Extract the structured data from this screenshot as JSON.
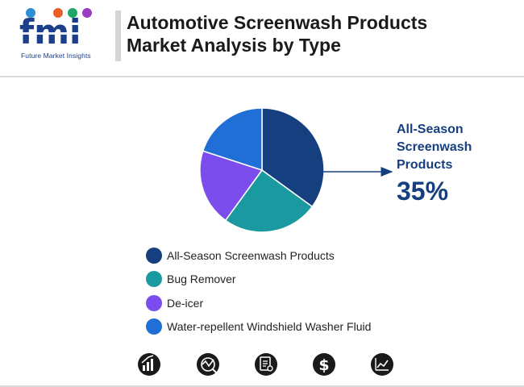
{
  "header": {
    "logo_text": "fmi",
    "logo_tagline": "Future Market Insights",
    "title_line1": "Automotive Screenwash Products",
    "title_line2": "Market Analysis by Type"
  },
  "colors": {
    "all_season": "#163f7f",
    "bug_remover": "#1a9aa0",
    "de_icer": "#7b4ded",
    "water_repellent": "#1f6fd6",
    "callout": "#163f7f"
  },
  "chart_data": {
    "type": "pie",
    "title": "",
    "slices": [
      {
        "label": "All-Season Screenwash Products",
        "value": 35,
        "color": "#163f7f"
      },
      {
        "label": "Bug Remover",
        "value": 25,
        "color": "#1a9aa0"
      },
      {
        "label": "De-icer",
        "value": 20,
        "color": "#7b4ded"
      },
      {
        "label": "Water-repellent Windshield Washer Fluid",
        "value": 20,
        "color": "#1f6fd6"
      }
    ],
    "highlight": {
      "label_lines": [
        "All-Season",
        "Screenwash",
        "Products"
      ],
      "value_text": "35%"
    },
    "legend_position": "bottom"
  },
  "footer_icons": [
    "bar-chart-icon",
    "market-gauge-icon",
    "report-document-icon",
    "dollar-icon",
    "trend-chart-icon"
  ]
}
